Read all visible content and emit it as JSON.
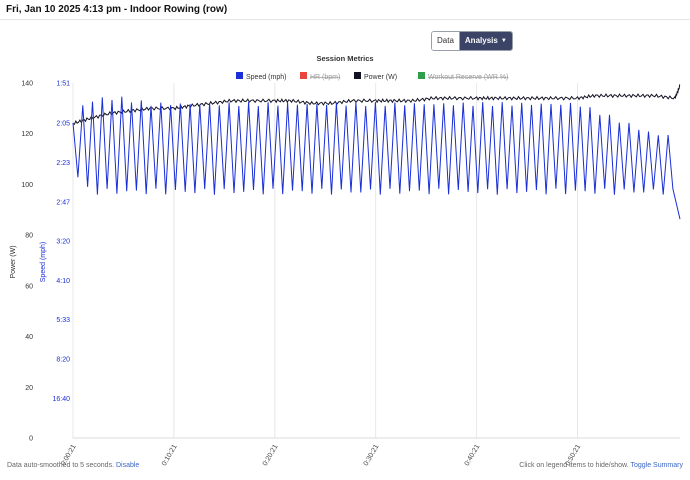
{
  "header": {
    "title": "Fri, Jan 10 2025 4:13 pm - Indoor Rowing (row)"
  },
  "view_toggle": {
    "data_label": "Data",
    "analysis_label": "Analysis",
    "selected": "Analysis"
  },
  "footer": {
    "left_text": "Data auto-smoothed to 5 seconds.",
    "left_link": "Disable",
    "right_text": "Click on legend items to hide/show.",
    "right_link": "Toggle Summary"
  },
  "colors": {
    "speed": "#1a2fd6",
    "hr": "#e8463c",
    "power": "#111122",
    "workout_reserve": "#2e9e4a",
    "grid": "#e2e2e2"
  },
  "chart_data": {
    "type": "line",
    "title": "Session Metrics",
    "legend_position": "top-center",
    "legend": [
      {
        "label": "Speed (mph)",
        "visible": true
      },
      {
        "label": "HR (bpm)",
        "visible": false
      },
      {
        "label": "Power (W)",
        "visible": true
      },
      {
        "label": "Workout Reserve (WR %)",
        "visible": false
      }
    ],
    "x_ticks": [
      "0:00:21",
      "0:10:21",
      "0:20:21",
      "0:30:21",
      "0:40:21",
      "0:50:21"
    ],
    "xlim": [
      "0:00:21",
      "1:00:30"
    ],
    "y_power": {
      "label": "Power (W)",
      "ticks": [
        "0",
        "20",
        "40",
        "60",
        "80",
        "100",
        "120",
        "140"
      ],
      "ylim": [
        0,
        140
      ]
    },
    "y_speed": {
      "label": "Speed (mph)",
      "ticks": [
        "16:40",
        "8:20",
        "5:33",
        "4:10",
        "3:20",
        "2:47",
        "2:23",
        "2:05",
        "1:51"
      ]
    },
    "grid": "vertical",
    "series": [
      {
        "name": "Power (W)",
        "axis": "y_power",
        "x": [
          "0:00:21",
          "0:02:00",
          "0:04:00",
          "0:06:00",
          "0:08:00",
          "0:10:21",
          "0:12:00",
          "0:14:00",
          "0:16:00",
          "0:18:00",
          "0:20:21",
          "0:22:00",
          "0:24:00",
          "0:26:00",
          "0:28:00",
          "0:30:21",
          "0:32:00",
          "0:34:00",
          "0:36:00",
          "0:38:00",
          "0:40:21",
          "0:42:00",
          "0:44:00",
          "0:46:00",
          "0:48:00",
          "0:50:21",
          "0:52:00",
          "0:54:00",
          "0:56:00",
          "0:58:00",
          "1:00:00",
          "1:00:30"
        ],
        "values": [
          124,
          126,
          128,
          129,
          130,
          130,
          131,
          132,
          133,
          133,
          133,
          133,
          132,
          132,
          133,
          133,
          133,
          133,
          134,
          134,
          134,
          134,
          134,
          134,
          134,
          134,
          135,
          135,
          135,
          135,
          134,
          139
        ]
      },
      {
        "name": "Speed (mph)",
        "axis": "y_speed",
        "pace_x": [
          "0:00:21",
          "0:00:45",
          "0:02:00",
          "0:03:30",
          "0:05:00",
          "0:06:30",
          "0:08:00",
          "0:10:21",
          "0:15:00",
          "0:20:21",
          "0:30:21",
          "0:40:21",
          "0:50:21",
          "0:58:00",
          "1:00:00",
          "1:00:30"
        ],
        "pace_peak": [
          "2:05",
          "2:00",
          "1:57",
          "1:56",
          "1:56",
          "1:57",
          "1:58",
          "1:58",
          "1:58",
          "1:58",
          "1:58",
          "1:58",
          "1:58",
          "2:10",
          "2:10",
          "3:00"
        ],
        "pace_trough": [
          "2:47",
          "2:30",
          "2:40",
          "2:40",
          "2:40",
          "2:40",
          "2:40",
          "2:40",
          "2:40",
          "2:40",
          "2:40",
          "2:40",
          "2:40",
          "2:40",
          "2:40",
          "3:00"
        ]
      }
    ]
  }
}
